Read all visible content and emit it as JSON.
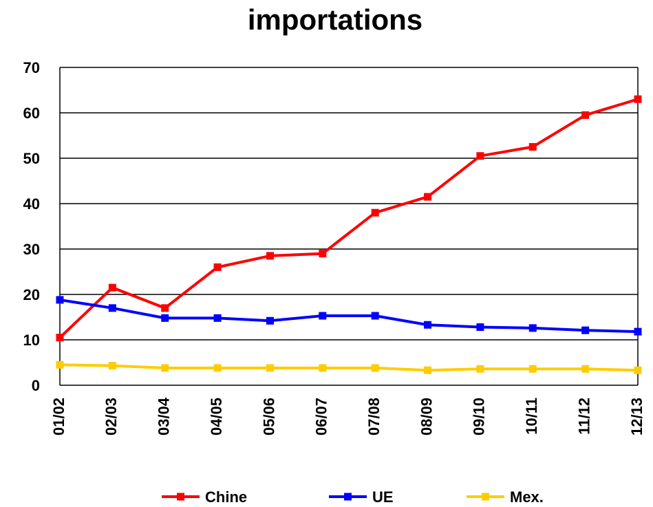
{
  "chart_data": {
    "type": "line",
    "title": "importations",
    "categories": [
      "01/02",
      "02/03",
      "03/04",
      "04/05",
      "05/06",
      "06/07",
      "07/08",
      "08/09",
      "09/10",
      "10/11",
      "11/12",
      "12/13"
    ],
    "series": [
      {
        "name": "Chine",
        "color": "#ff0000",
        "values": [
          10.5,
          21.5,
          17,
          26,
          28.5,
          29,
          38,
          41.5,
          50.5,
          52.5,
          59.5,
          63
        ]
      },
      {
        "name": "UE",
        "color": "#0000ff",
        "values": [
          18.8,
          17,
          14.8,
          14.8,
          14.2,
          15.3,
          15.3,
          13.3,
          12.8,
          12.6,
          12.1,
          11.8
        ]
      },
      {
        "name": "Mex.",
        "color": "#ffcc00",
        "values": [
          4.5,
          4.3,
          3.8,
          3.8,
          3.8,
          3.8,
          3.8,
          3.3,
          3.6,
          3.6,
          3.6,
          3.3
        ]
      }
    ],
    "ylim": [
      0,
      70
    ],
    "yticks": [
      0,
      10,
      20,
      30,
      40,
      50,
      60,
      70
    ],
    "grid": true,
    "legend": "bottom"
  }
}
